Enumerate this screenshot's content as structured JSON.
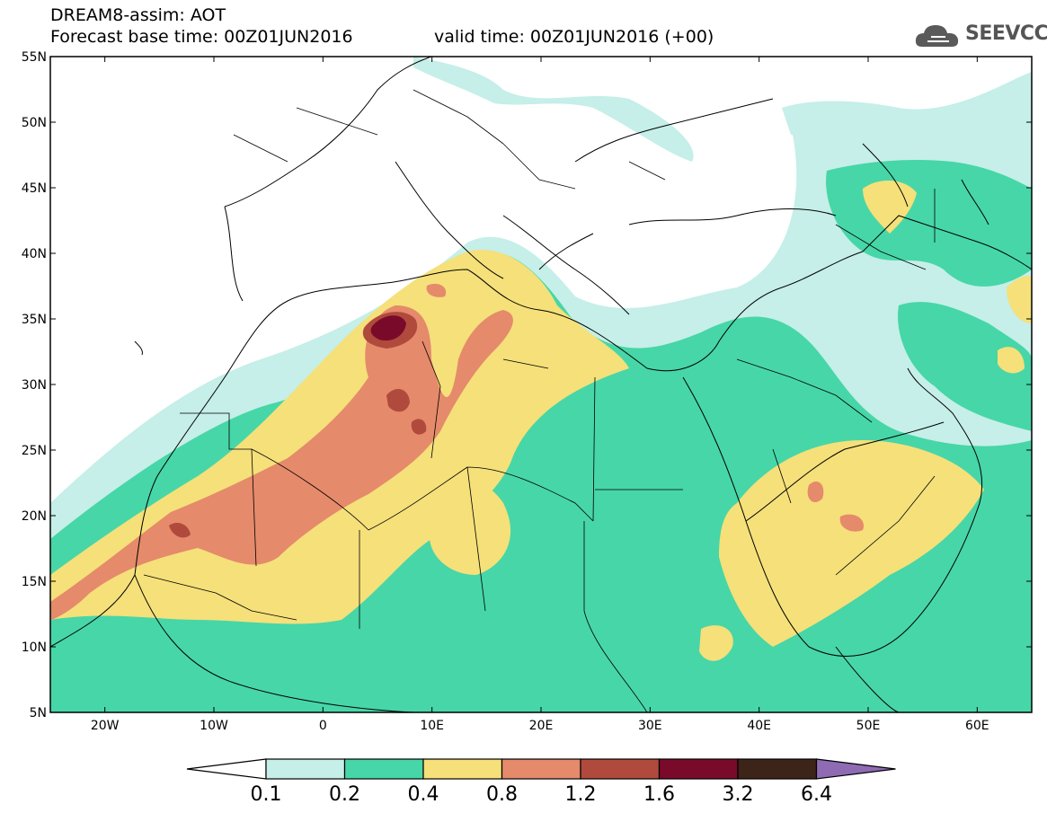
{
  "header": {
    "title": "DREAM8-assim: AOT",
    "base_time": "Forecast base time: 00Z01JUN2016",
    "valid_time": "valid time: 00Z01JUN2016 (+00)"
  },
  "logo": {
    "text": "SEEVCCC",
    "icon": "cloud-icon"
  },
  "map": {
    "lat_labels": [
      "55N",
      "50N",
      "45N",
      "40N",
      "35N",
      "30N",
      "25N",
      "20N",
      "15N",
      "10N",
      "5N"
    ],
    "lon_labels": [
      "20W",
      "10W",
      "0",
      "10E",
      "20E",
      "30E",
      "40E",
      "50E",
      "60E"
    ],
    "lat_range": [
      5,
      55
    ],
    "lon_range": [
      -25,
      65
    ]
  },
  "colorbar": {
    "levels": [
      "0.1",
      "0.2",
      "0.4",
      "0.8",
      "1.2",
      "1.6",
      "3.2",
      "6.4"
    ],
    "colors": [
      "#ffffff",
      "#c5efe8",
      "#47d6a7",
      "#f5e07a",
      "#e58a6b",
      "#b04a3c",
      "#7a0a2a",
      "#3d2418",
      "#8f6bb3"
    ]
  },
  "field_colors": {
    "l1": "#c5efe8",
    "l2": "#47d6a7",
    "l3": "#f5e07a",
    "l4": "#e58a6b",
    "l5": "#b04a3c",
    "l6": "#7a0a2a"
  }
}
